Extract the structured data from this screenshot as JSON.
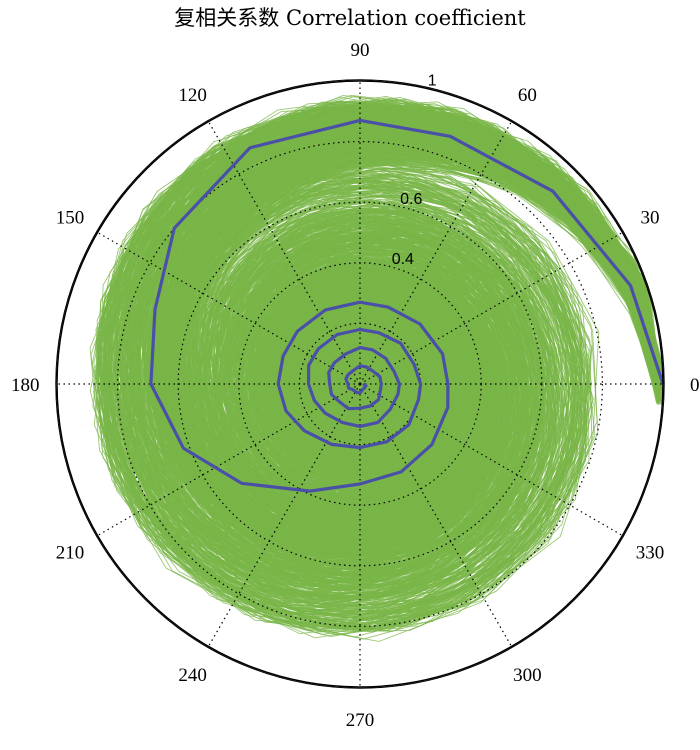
{
  "chart_data": {
    "type": "polar-line",
    "title": "复相关系数 Correlation coefficient",
    "angle_ticks": [
      "0",
      "30",
      "60",
      "90",
      "120",
      "150",
      "180",
      "210",
      "240",
      "270",
      "300",
      "330"
    ],
    "angle_tick_values": [
      0,
      30,
      60,
      90,
      120,
      150,
      180,
      210,
      240,
      270,
      300,
      330
    ],
    "radial_ticks": [
      "0.4",
      "0.6",
      "1"
    ],
    "radial_tick_values": [
      0.4,
      0.6,
      1.0
    ],
    "radial_grid_values": [
      0.2,
      0.4,
      0.6,
      0.8
    ],
    "rlim": [
      0,
      1
    ],
    "grid": true,
    "colors": {
      "ensemble": "#7ab648",
      "highlight": "#4a4fa8",
      "axis": "#000000"
    },
    "series": [
      {
        "role": "ensemble",
        "description_only": false,
        "samples": 700,
        "start_angle_deg": 0,
        "start_r": 1.0,
        "decay_per_step": 0.96,
        "step_deg": 20,
        "turns": 7
      },
      {
        "role": "highlight",
        "points": [
          [
            0,
            1.0
          ],
          [
            20,
            0.95
          ],
          [
            45,
            0.9
          ],
          [
            70,
            0.87
          ],
          [
            90,
            0.87
          ],
          [
            115,
            0.86
          ],
          [
            140,
            0.8
          ],
          [
            160,
            0.72
          ],
          [
            180,
            0.69
          ],
          [
            200,
            0.62
          ],
          [
            220,
            0.51
          ],
          [
            245,
            0.39
          ],
          [
            270,
            0.33
          ],
          [
            295,
            0.32
          ],
          [
            320,
            0.31
          ],
          [
            345,
            0.3
          ],
          [
            0,
            0.29
          ],
          [
            20,
            0.29
          ],
          [
            45,
            0.28
          ],
          [
            70,
            0.27
          ],
          [
            90,
            0.27
          ],
          [
            115,
            0.27
          ],
          [
            140,
            0.27
          ],
          [
            160,
            0.27
          ],
          [
            180,
            0.27
          ],
          [
            200,
            0.26
          ],
          [
            220,
            0.24
          ],
          [
            245,
            0.22
          ],
          [
            270,
            0.21
          ],
          [
            295,
            0.21
          ],
          [
            320,
            0.21
          ],
          [
            345,
            0.2
          ],
          [
            0,
            0.2
          ],
          [
            20,
            0.19
          ],
          [
            45,
            0.19
          ],
          [
            70,
            0.18
          ],
          [
            90,
            0.18
          ],
          [
            115,
            0.18
          ],
          [
            140,
            0.18
          ],
          [
            160,
            0.18
          ],
          [
            180,
            0.17
          ],
          [
            200,
            0.16
          ],
          [
            220,
            0.15
          ],
          [
            245,
            0.14
          ],
          [
            270,
            0.14
          ],
          [
            295,
            0.14
          ],
          [
            320,
            0.13
          ],
          [
            345,
            0.13
          ],
          [
            0,
            0.13
          ],
          [
            20,
            0.12
          ],
          [
            45,
            0.12
          ],
          [
            70,
            0.12
          ],
          [
            90,
            0.12
          ],
          [
            115,
            0.11
          ],
          [
            140,
            0.11
          ],
          [
            160,
            0.11
          ],
          [
            180,
            0.1
          ],
          [
            200,
            0.1
          ],
          [
            220,
            0.09
          ],
          [
            245,
            0.09
          ],
          [
            270,
            0.08
          ],
          [
            295,
            0.08
          ],
          [
            320,
            0.08
          ],
          [
            345,
            0.07
          ],
          [
            0,
            0.07
          ],
          [
            20,
            0.07
          ],
          [
            45,
            0.06
          ],
          [
            70,
            0.06
          ],
          [
            90,
            0.06
          ],
          [
            115,
            0.05
          ],
          [
            140,
            0.05
          ],
          [
            160,
            0.05
          ],
          [
            180,
            0.04
          ],
          [
            200,
            0.04
          ],
          [
            220,
            0.03
          ],
          [
            245,
            0.03
          ],
          [
            270,
            0.03
          ],
          [
            295,
            0.02
          ],
          [
            320,
            0.02
          ],
          [
            345,
            0.02
          ],
          [
            0,
            0.01
          ]
        ]
      }
    ]
  }
}
